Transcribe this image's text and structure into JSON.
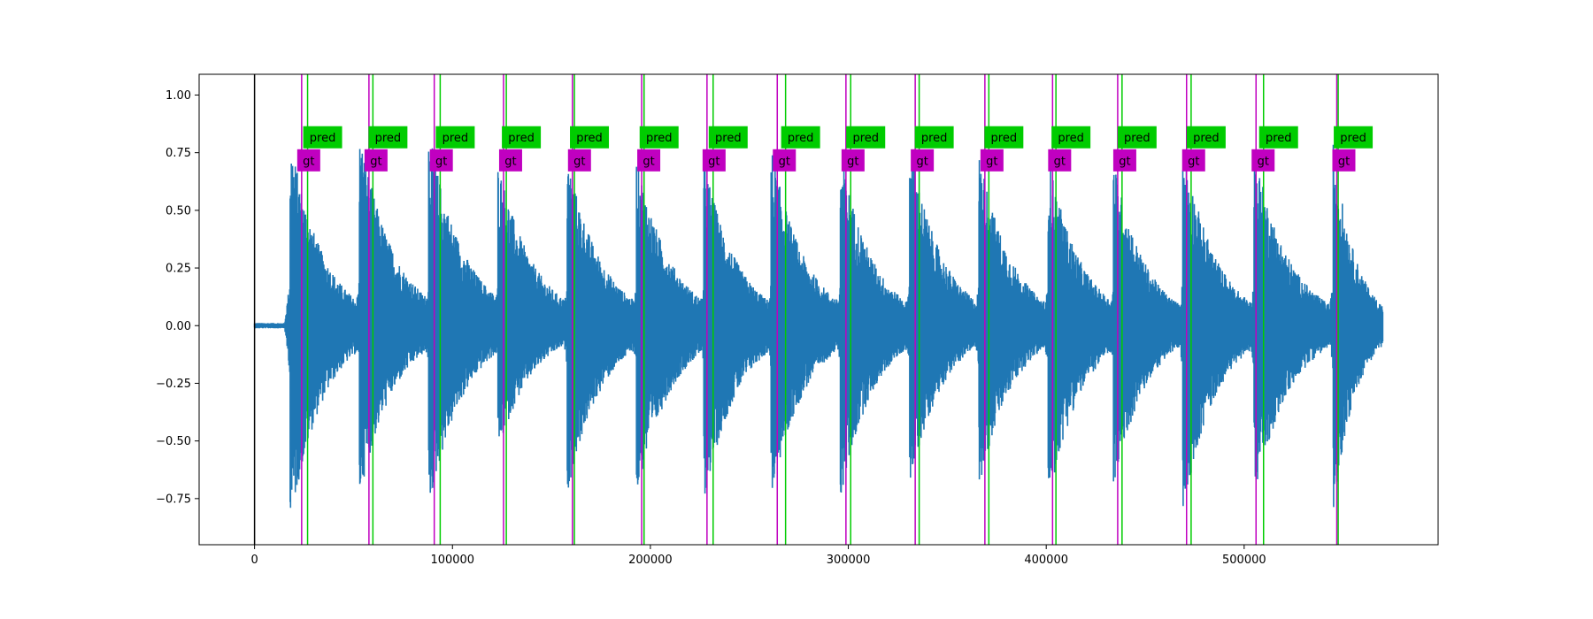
{
  "chart_data": {
    "type": "line",
    "title": "",
    "xlabel": "",
    "ylabel": "",
    "xlim": [
      -28000,
      598000
    ],
    "ylim": [
      -0.95,
      1.09
    ],
    "grid": false,
    "x_ticks": [
      0,
      100000,
      200000,
      300000,
      400000,
      500000
    ],
    "x_tick_labels": [
      "0",
      "100000",
      "200000",
      "300000",
      "400000",
      "500000"
    ],
    "y_ticks": [
      -0.75,
      -0.5,
      -0.25,
      0.0,
      0.25,
      0.5,
      0.75,
      1.0
    ],
    "y_tick_labels": [
      "−0.75",
      "−0.50",
      "−0.25",
      "0.00",
      "0.25",
      "0.50",
      "0.75",
      "1.00"
    ],
    "colors": {
      "waveform": "#1f77b4",
      "gt": "#c000c0",
      "pred": "#00cc00",
      "origin_line": "#000000"
    },
    "waveform": {
      "x_start": 0,
      "x_end": 570000,
      "bursts": [
        {
          "onset": 18000,
          "end": 55000,
          "amp_pos": 0.83,
          "amp_neg": 0.87
        },
        {
          "onset": 53000,
          "end": 92000,
          "amp_pos": 0.85,
          "amp_neg": 0.75
        },
        {
          "onset": 88000,
          "end": 128000,
          "amp_pos": 0.85,
          "amp_neg": 0.8
        },
        {
          "onset": 123000,
          "end": 163000,
          "amp_pos": 0.72,
          "amp_neg": 0.55
        },
        {
          "onset": 158000,
          "end": 197000,
          "amp_pos": 0.74,
          "amp_neg": 0.73
        },
        {
          "onset": 193000,
          "end": 232000,
          "amp_pos": 0.74,
          "amp_neg": 0.75
        },
        {
          "onset": 227000,
          "end": 265000,
          "amp_pos": 0.73,
          "amp_neg": 0.77
        },
        {
          "onset": 261000,
          "end": 299000,
          "amp_pos": 0.78,
          "amp_neg": 0.76
        },
        {
          "onset": 296000,
          "end": 333000,
          "amp_pos": 0.76,
          "amp_neg": 0.76
        },
        {
          "onset": 331000,
          "end": 368000,
          "amp_pos": 0.8,
          "amp_neg": 0.7
        },
        {
          "onset": 366000,
          "end": 403000,
          "amp_pos": 0.76,
          "amp_neg": 0.72
        },
        {
          "onset": 401000,
          "end": 438000,
          "amp_pos": 0.74,
          "amp_neg": 0.78
        },
        {
          "onset": 434000,
          "end": 470000,
          "amp_pos": 0.72,
          "amp_neg": 0.72
        },
        {
          "onset": 469000,
          "end": 506000,
          "amp_pos": 0.8,
          "amp_neg": 0.82
        },
        {
          "onset": 505000,
          "end": 545000,
          "amp_pos": 0.77,
          "amp_neg": 0.76
        },
        {
          "onset": 545000,
          "end": 570000,
          "amp_pos": 0.8,
          "amp_neg": 0.81
        }
      ]
    },
    "gt": {
      "label": "gt",
      "label_y": 0.715,
      "x": [
        23800,
        57800,
        90800,
        125800,
        160600,
        195600,
        228600,
        264100,
        298800,
        333800,
        369000,
        403200,
        436100,
        470900,
        506000,
        546800
      ]
    },
    "pred": {
      "label": "pred",
      "label_y": 0.815,
      "x": [
        26800,
        59800,
        93800,
        127200,
        161600,
        196800,
        231700,
        268300,
        301200,
        335800,
        371000,
        404900,
        438300,
        473200,
        509800,
        547500
      ]
    },
    "origin_marker_x": 0
  }
}
